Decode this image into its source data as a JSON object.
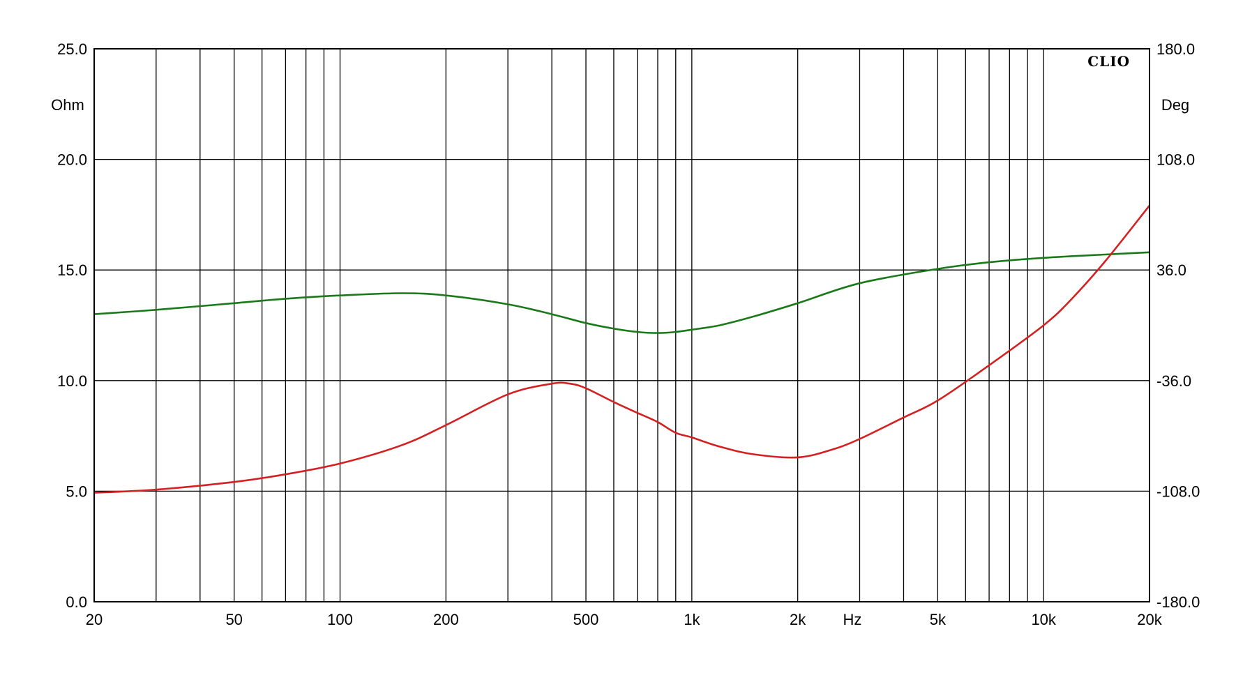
{
  "chart_data": {
    "type": "line",
    "title": "",
    "logo": "CLIO",
    "xlabel": "Hz",
    "ylabel_left": "Ohm",
    "ylabel_right": "Deg",
    "x_scale": "log",
    "xlim": [
      20,
      20000
    ],
    "ylim_left": [
      0,
      25
    ],
    "ylim_right": [
      -180,
      180
    ],
    "grid": true,
    "x_ticks": [
      {
        "value": 20,
        "label": "20"
      },
      {
        "value": 50,
        "label": "50"
      },
      {
        "value": 100,
        "label": "100"
      },
      {
        "value": 200,
        "label": "200"
      },
      {
        "value": 500,
        "label": "500"
      },
      {
        "value": 1000,
        "label": "1k"
      },
      {
        "value": 2000,
        "label": "2k"
      },
      {
        "value": 5000,
        "label": "5k"
      },
      {
        "value": 10000,
        "label": "10k"
      },
      {
        "value": 20000,
        "label": "20k"
      }
    ],
    "y_ticks_left": [
      {
        "value": 0,
        "label": "0.0"
      },
      {
        "value": 5,
        "label": "5.0"
      },
      {
        "value": 10,
        "label": "10.0"
      },
      {
        "value": 15,
        "label": "15.0"
      },
      {
        "value": 20,
        "label": "20.0"
      },
      {
        "value": 25,
        "label": "25.0"
      }
    ],
    "y_ticks_right": [
      {
        "value": -180,
        "label": "-180.0"
      },
      {
        "value": -108,
        "label": "-108.0"
      },
      {
        "value": -36,
        "label": "-36.0"
      },
      {
        "value": 36,
        "label": "36.0"
      },
      {
        "value": 108,
        "label": "108.0"
      },
      {
        "value": 180,
        "label": "180.0"
      }
    ],
    "series": [
      {
        "axis": "left",
        "color": "#1a7a1a",
        "x": [
          20,
          30,
          50,
          70,
          100,
          150,
          200,
          300,
          400,
          500,
          600,
          700,
          800,
          900,
          1000,
          1200,
          1500,
          2000,
          3000,
          5000,
          7000,
          10000,
          15000,
          20000
        ],
        "values": [
          13.0,
          13.2,
          13.5,
          13.7,
          13.85,
          13.95,
          13.85,
          13.45,
          13.0,
          12.6,
          12.35,
          12.2,
          12.15,
          12.2,
          12.3,
          12.5,
          12.9,
          13.5,
          14.4,
          15.05,
          15.35,
          15.55,
          15.7,
          15.8
        ]
      },
      {
        "axis": "right",
        "color": "#d42020",
        "x": [
          20,
          30,
          50,
          70,
          100,
          150,
          200,
          300,
          400,
          450,
          500,
          600,
          700,
          800,
          900,
          1000,
          1200,
          1500,
          2000,
          2500,
          3000,
          4000,
          5000,
          7000,
          10000,
          12000,
          15000,
          20000
        ],
        "values": [
          -109,
          -107,
          -102,
          -97,
          -90,
          -78,
          -65,
          -45,
          -38,
          -38,
          -41,
          -50,
          -57,
          -63,
          -70,
          -73,
          -79,
          -84,
          -86,
          -81,
          -74,
          -60,
          -49,
          -26,
          0,
          17,
          42,
          78
        ]
      }
    ]
  }
}
